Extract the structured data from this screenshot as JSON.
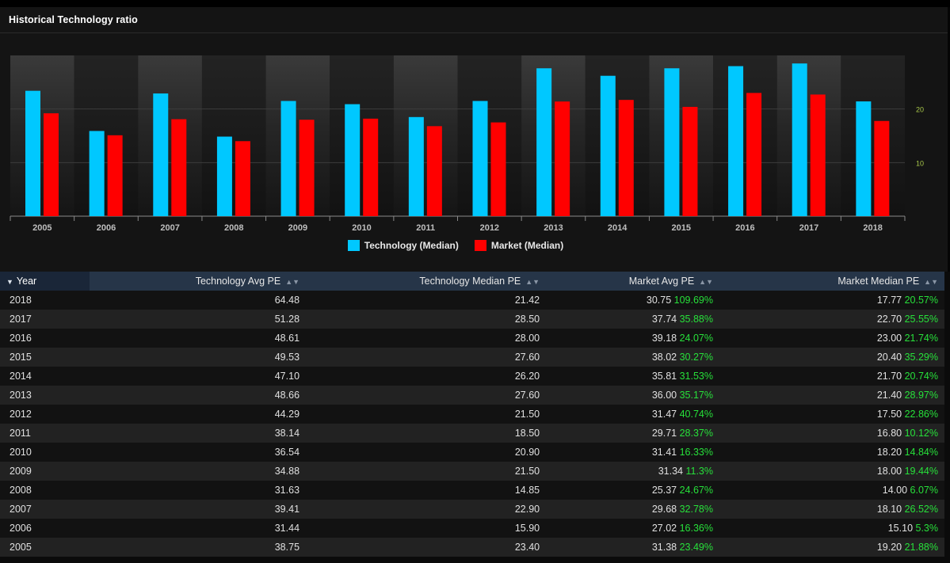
{
  "panel": {
    "title": "Historical Technology ratio"
  },
  "colors": {
    "technology": "#00c8ff",
    "market": "#ff0000",
    "positive_pct": "#27e03a",
    "header_bg": "#263548"
  },
  "chart_data": {
    "type": "bar",
    "categories": [
      "2005",
      "2006",
      "2007",
      "2008",
      "2009",
      "2010",
      "2011",
      "2012",
      "2013",
      "2014",
      "2015",
      "2016",
      "2017",
      "2018"
    ],
    "series": [
      {
        "name": "Technology (Median)",
        "values": [
          23.4,
          15.9,
          22.9,
          14.85,
          21.5,
          20.9,
          18.5,
          21.5,
          27.6,
          26.2,
          27.6,
          28.0,
          28.5,
          21.42
        ]
      },
      {
        "name": "Market (Median)",
        "values": [
          19.2,
          15.1,
          18.1,
          14.0,
          18.0,
          18.2,
          16.8,
          17.5,
          21.4,
          21.7,
          20.4,
          23.0,
          22.7,
          17.77
        ]
      }
    ],
    "y_ticks": [
      "10",
      "20"
    ],
    "ylim": [
      0,
      30
    ],
    "legend_position": "bottom-center",
    "grid": true
  },
  "table": {
    "headers": [
      "Year",
      "Technology Avg PE",
      "Technology Median PE",
      "Market Avg PE",
      "Market Median PE"
    ],
    "rows": [
      {
        "year": "2018",
        "tech_avg": "64.48",
        "tech_median": "21.42",
        "mkt_avg": "30.75",
        "mkt_avg_pct": "109.69%",
        "mkt_median": "17.77",
        "mkt_median_pct": "20.57%"
      },
      {
        "year": "2017",
        "tech_avg": "51.28",
        "tech_median": "28.50",
        "mkt_avg": "37.74",
        "mkt_avg_pct": "35.88%",
        "mkt_median": "22.70",
        "mkt_median_pct": "25.55%"
      },
      {
        "year": "2016",
        "tech_avg": "48.61",
        "tech_median": "28.00",
        "mkt_avg": "39.18",
        "mkt_avg_pct": "24.07%",
        "mkt_median": "23.00",
        "mkt_median_pct": "21.74%"
      },
      {
        "year": "2015",
        "tech_avg": "49.53",
        "tech_median": "27.60",
        "mkt_avg": "38.02",
        "mkt_avg_pct": "30.27%",
        "mkt_median": "20.40",
        "mkt_median_pct": "35.29%"
      },
      {
        "year": "2014",
        "tech_avg": "47.10",
        "tech_median": "26.20",
        "mkt_avg": "35.81",
        "mkt_avg_pct": "31.53%",
        "mkt_median": "21.70",
        "mkt_median_pct": "20.74%"
      },
      {
        "year": "2013",
        "tech_avg": "48.66",
        "tech_median": "27.60",
        "mkt_avg": "36.00",
        "mkt_avg_pct": "35.17%",
        "mkt_median": "21.40",
        "mkt_median_pct": "28.97%"
      },
      {
        "year": "2012",
        "tech_avg": "44.29",
        "tech_median": "21.50",
        "mkt_avg": "31.47",
        "mkt_avg_pct": "40.74%",
        "mkt_median": "17.50",
        "mkt_median_pct": "22.86%"
      },
      {
        "year": "2011",
        "tech_avg": "38.14",
        "tech_median": "18.50",
        "mkt_avg": "29.71",
        "mkt_avg_pct": "28.37%",
        "mkt_median": "16.80",
        "mkt_median_pct": "10.12%"
      },
      {
        "year": "2010",
        "tech_avg": "36.54",
        "tech_median": "20.90",
        "mkt_avg": "31.41",
        "mkt_avg_pct": "16.33%",
        "mkt_median": "18.20",
        "mkt_median_pct": "14.84%"
      },
      {
        "year": "2009",
        "tech_avg": "34.88",
        "tech_median": "21.50",
        "mkt_avg": "31.34",
        "mkt_avg_pct": "11.3%",
        "mkt_median": "18.00",
        "mkt_median_pct": "19.44%"
      },
      {
        "year": "2008",
        "tech_avg": "31.63",
        "tech_median": "14.85",
        "mkt_avg": "25.37",
        "mkt_avg_pct": "24.67%",
        "mkt_median": "14.00",
        "mkt_median_pct": "6.07%"
      },
      {
        "year": "2007",
        "tech_avg": "39.41",
        "tech_median": "22.90",
        "mkt_avg": "29.68",
        "mkt_avg_pct": "32.78%",
        "mkt_median": "18.10",
        "mkt_median_pct": "26.52%"
      },
      {
        "year": "2006",
        "tech_avg": "31.44",
        "tech_median": "15.90",
        "mkt_avg": "27.02",
        "mkt_avg_pct": "16.36%",
        "mkt_median": "15.10",
        "mkt_median_pct": "5.3%"
      },
      {
        "year": "2005",
        "tech_avg": "38.75",
        "tech_median": "23.40",
        "mkt_avg": "31.38",
        "mkt_avg_pct": "23.49%",
        "mkt_median": "19.20",
        "mkt_median_pct": "21.88%"
      }
    ]
  }
}
